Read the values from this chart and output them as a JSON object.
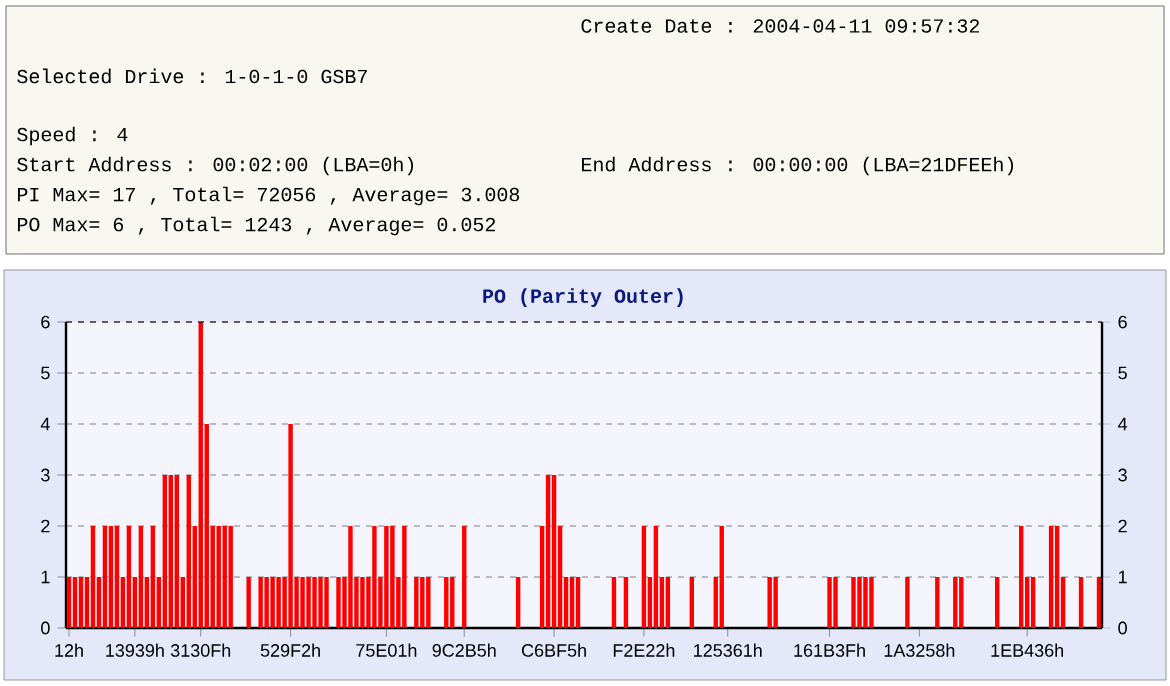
{
  "chart_data": {
    "type": "bar",
    "title": "PO (Parity Outer)",
    "categories": [
      "12h",
      null,
      null,
      null,
      null,
      null,
      null,
      null,
      null,
      null,
      null,
      "13939h",
      null,
      null,
      null,
      null,
      null,
      null,
      null,
      null,
      null,
      null,
      "3130Fh",
      null,
      null,
      null,
      null,
      null,
      null,
      null,
      null,
      null,
      null,
      null,
      null,
      null,
      null,
      "529F2h",
      null,
      null,
      null,
      null,
      null,
      null,
      null,
      null,
      null,
      null,
      null,
      null,
      null,
      null,
      null,
      "75E01h",
      null,
      null,
      null,
      null,
      null,
      null,
      null,
      null,
      null,
      null,
      null,
      null,
      "9C2B5h",
      null,
      null,
      null,
      null,
      null,
      null,
      null,
      null,
      null,
      null,
      null,
      null,
      null,
      null,
      "C6BF5h",
      null,
      null,
      null,
      null,
      null,
      null,
      null,
      null,
      null,
      null,
      null,
      null,
      null,
      null,
      "F2E22h",
      null,
      null,
      null,
      null,
      null,
      null,
      null,
      null,
      null,
      null,
      null,
      null,
      null,
      "125361h",
      null,
      null,
      null,
      null,
      null,
      null,
      null,
      null,
      null,
      null,
      null,
      null,
      null,
      null,
      null,
      null,
      "161B3Fh",
      null,
      null,
      null,
      null,
      null,
      null,
      null,
      null,
      null,
      null,
      null,
      null,
      null,
      null,
      "1A3258h",
      null,
      null,
      null,
      null,
      null,
      null,
      null,
      null,
      null,
      null,
      null,
      null,
      null,
      null,
      null,
      null,
      null,
      "1EB436h",
      null,
      null,
      null,
      null,
      null,
      null,
      null,
      null,
      null,
      null,
      null,
      null
    ],
    "values": [
      1,
      1,
      1,
      1,
      2,
      1,
      2,
      2,
      2,
      1,
      2,
      1,
      2,
      1,
      2,
      1,
      3,
      3,
      3,
      1,
      3,
      2,
      6,
      4,
      2,
      2,
      2,
      2,
      0,
      0,
      1,
      0,
      1,
      1,
      1,
      1,
      1,
      4,
      1,
      1,
      1,
      1,
      1,
      1,
      0,
      1,
      1,
      2,
      1,
      1,
      1,
      2,
      1,
      2,
      2,
      1,
      2,
      0,
      1,
      1,
      1,
      0,
      0,
      1,
      1,
      0,
      2,
      0,
      0,
      0,
      0,
      0,
      0,
      0,
      0,
      1,
      0,
      0,
      0,
      2,
      3,
      3,
      2,
      1,
      1,
      1,
      0,
      0,
      0,
      0,
      0,
      1,
      0,
      1,
      0,
      0,
      2,
      1,
      2,
      1,
      1,
      0,
      0,
      0,
      1,
      0,
      0,
      0,
      1,
      2,
      0,
      0,
      0,
      0,
      0,
      0,
      0,
      1,
      1,
      0,
      0,
      0,
      0,
      0,
      0,
      0,
      0,
      1,
      1,
      0,
      0,
      1,
      1,
      1,
      1,
      0,
      0,
      0,
      0,
      0,
      1,
      0,
      0,
      0,
      0,
      1,
      0,
      0,
      1,
      1,
      0,
      0,
      0,
      0,
      0,
      1,
      0,
      0,
      0,
      2,
      1,
      1,
      0,
      0,
      2,
      2,
      1,
      0,
      0,
      1,
      0,
      0,
      1
    ],
    "color": "#ff0000",
    "ylim": [
      0,
      6
    ],
    "yticks": [
      0,
      1,
      2,
      3,
      4,
      5,
      6
    ],
    "y2lim": [
      0,
      6
    ],
    "y2ticks": [
      0,
      1,
      2,
      3,
      4,
      5,
      6
    ],
    "grid": "y",
    "annotations": [
      "Create Date : 2004-04-11 09:57:32",
      "Selected Drive : 1-0-1-0 GSB7",
      "Speed : 4",
      "Start Address : 00:02:00 (LBA=0h)",
      "End Address : 00:00:00 (LBA=21DFEEh)",
      "PI Max= 17 , Total= 72056 , Average= 3.008",
      "PO Max= 6 , Total= 1243 , Average= 0.052"
    ]
  }
}
